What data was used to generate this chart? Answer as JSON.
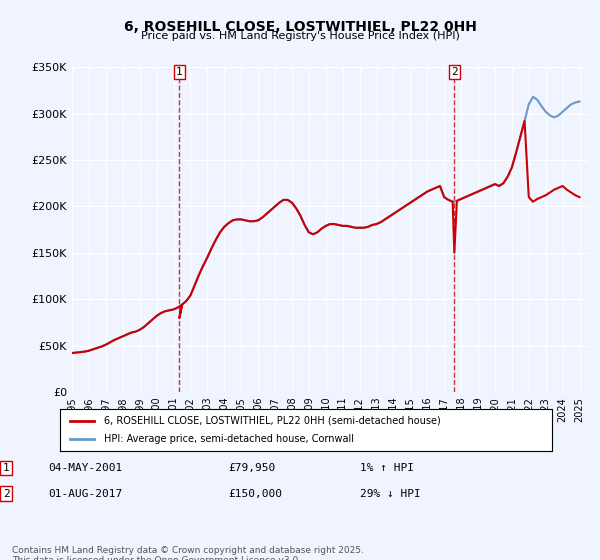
{
  "title": "6, ROSEHILL CLOSE, LOSTWITHIEL, PL22 0HH",
  "subtitle": "Price paid vs. HM Land Registry's House Price Index (HPI)",
  "xlabel": "",
  "ylabel": "",
  "ylim": [
    0,
    350000
  ],
  "yticks": [
    0,
    50000,
    100000,
    150000,
    200000,
    250000,
    300000,
    350000
  ],
  "ytick_labels": [
    "£0",
    "£50K",
    "£100K",
    "£150K",
    "£200K",
    "£250K",
    "£300K",
    "£350K"
  ],
  "background_color": "#f0f4ff",
  "plot_bg_color": "#f0f4ff",
  "grid_color": "#ffffff",
  "red_color": "#cc0000",
  "blue_color": "#6699cc",
  "marker1_date": "2001-05-04",
  "marker1_label": "1",
  "marker1_price": 79950,
  "marker1_text": "04-MAY-2001    £79,950    1% ↑ HPI",
  "marker2_date": "2017-08-01",
  "marker2_label": "2",
  "marker2_price": 150000,
  "marker2_text": "01-AUG-2017    £150,000    29% ↓ HPI",
  "legend_line1": "6, ROSEHILL CLOSE, LOSTWITHIEL, PL22 0HH (semi-detached house)",
  "legend_line2": "HPI: Average price, semi-detached house, Cornwall",
  "footer": "Contains HM Land Registry data © Crown copyright and database right 2025.\nThis data is licensed under the Open Government Licence v3.0.",
  "hpi_data": {
    "dates": [
      1995.0,
      1995.25,
      1995.5,
      1995.75,
      1996.0,
      1996.25,
      1996.5,
      1996.75,
      1997.0,
      1997.25,
      1997.5,
      1997.75,
      1998.0,
      1998.25,
      1998.5,
      1998.75,
      1999.0,
      1999.25,
      1999.5,
      1999.75,
      2000.0,
      2000.25,
      2000.5,
      2000.75,
      2001.0,
      2001.25,
      2001.5,
      2001.75,
      2002.0,
      2002.25,
      2002.5,
      2002.75,
      2003.0,
      2003.25,
      2003.5,
      2003.75,
      2004.0,
      2004.25,
      2004.5,
      2004.75,
      2005.0,
      2005.25,
      2005.5,
      2005.75,
      2006.0,
      2006.25,
      2006.5,
      2006.75,
      2007.0,
      2007.25,
      2007.5,
      2007.75,
      2008.0,
      2008.25,
      2008.5,
      2008.75,
      2009.0,
      2009.25,
      2009.5,
      2009.75,
      2010.0,
      2010.25,
      2010.5,
      2010.75,
      2011.0,
      2011.25,
      2011.5,
      2011.75,
      2012.0,
      2012.25,
      2012.5,
      2012.75,
      2013.0,
      2013.25,
      2013.5,
      2013.75,
      2014.0,
      2014.25,
      2014.5,
      2014.75,
      2015.0,
      2015.25,
      2015.5,
      2015.75,
      2016.0,
      2016.25,
      2016.5,
      2016.75,
      2017.0,
      2017.25,
      2017.5,
      2017.75,
      2018.0,
      2018.25,
      2018.5,
      2018.75,
      2019.0,
      2019.25,
      2019.5,
      2019.75,
      2020.0,
      2020.25,
      2020.5,
      2020.75,
      2021.0,
      2021.25,
      2021.5,
      2021.75,
      2022.0,
      2022.25,
      2022.5,
      2022.75,
      2023.0,
      2023.25,
      2023.5,
      2023.75,
      2024.0,
      2024.25,
      2024.5,
      2024.75,
      2025.0
    ],
    "values": [
      42000,
      42500,
      43000,
      43500,
      44500,
      46000,
      47500,
      49000,
      51000,
      53500,
      56000,
      58000,
      60000,
      62000,
      64000,
      65000,
      67000,
      70000,
      74000,
      78000,
      82000,
      85000,
      87000,
      88000,
      89000,
      91000,
      94000,
      98000,
      104000,
      115000,
      126000,
      136000,
      145000,
      155000,
      164000,
      172000,
      178000,
      182000,
      185000,
      186000,
      186000,
      185000,
      184000,
      184000,
      185000,
      188000,
      192000,
      196000,
      200000,
      204000,
      207000,
      207000,
      204000,
      198000,
      190000,
      180000,
      172000,
      170000,
      172000,
      176000,
      179000,
      181000,
      181000,
      180000,
      179000,
      179000,
      178000,
      177000,
      177000,
      177000,
      178000,
      180000,
      181000,
      183000,
      186000,
      189000,
      192000,
      195000,
      198000,
      201000,
      204000,
      207000,
      210000,
      213000,
      216000,
      218000,
      220000,
      222000,
      210000,
      207000,
      205000,
      206000,
      208000,
      210000,
      212000,
      214000,
      216000,
      218000,
      220000,
      222000,
      224000,
      222000,
      225000,
      232000,
      242000,
      258000,
      275000,
      292000,
      310000,
      318000,
      315000,
      308000,
      302000,
      298000,
      296000,
      298000,
      302000,
      306000,
      310000,
      312000,
      313000
    ]
  },
  "red_data": {
    "dates": [
      1995.0,
      1995.25,
      1995.5,
      1995.75,
      1996.0,
      1996.25,
      1996.5,
      1996.75,
      1997.0,
      1997.25,
      1997.5,
      1997.75,
      1998.0,
      1998.25,
      1998.5,
      1998.75,
      1999.0,
      1999.25,
      1999.5,
      1999.75,
      2000.0,
      2000.25,
      2000.5,
      2000.75,
      2001.0,
      2001.25,
      2001.5,
      2001.35,
      2001.35,
      2001.5,
      2001.75,
      2002.0,
      2002.25,
      2002.5,
      2002.75,
      2003.0,
      2003.25,
      2003.5,
      2003.75,
      2004.0,
      2004.25,
      2004.5,
      2004.75,
      2005.0,
      2005.25,
      2005.5,
      2005.75,
      2006.0,
      2006.25,
      2006.5,
      2006.75,
      2007.0,
      2007.25,
      2007.5,
      2007.75,
      2008.0,
      2008.25,
      2008.5,
      2008.75,
      2009.0,
      2009.25,
      2009.5,
      2009.75,
      2010.0,
      2010.25,
      2010.5,
      2010.75,
      2011.0,
      2011.25,
      2011.5,
      2011.75,
      2012.0,
      2012.25,
      2012.5,
      2012.75,
      2013.0,
      2013.25,
      2013.5,
      2013.75,
      2014.0,
      2014.25,
      2014.5,
      2014.75,
      2015.0,
      2015.25,
      2015.5,
      2015.75,
      2016.0,
      2016.25,
      2016.5,
      2016.75,
      2017.0,
      2017.25,
      2017.5,
      2017.6,
      2017.6,
      2017.75,
      2018.0,
      2018.25,
      2018.5,
      2018.75,
      2019.0,
      2019.25,
      2019.5,
      2019.75,
      2020.0,
      2020.25,
      2020.5,
      2020.75,
      2021.0,
      2021.25,
      2021.5,
      2021.75,
      2022.0,
      2022.25,
      2022.5,
      2022.75,
      2023.0,
      2023.25,
      2023.5,
      2023.75,
      2024.0,
      2024.25,
      2024.5,
      2024.75,
      2025.0
    ],
    "values": [
      42000,
      42500,
      43000,
      43500,
      44500,
      46000,
      47500,
      49000,
      51000,
      53500,
      56000,
      58000,
      60000,
      62000,
      64000,
      65000,
      67000,
      70000,
      74000,
      78000,
      82000,
      85000,
      87000,
      88000,
      89000,
      91000,
      94000,
      79950,
      79950,
      94000,
      98000,
      104000,
      115000,
      126000,
      136000,
      145000,
      155000,
      164000,
      172000,
      178000,
      182000,
      185000,
      186000,
      186000,
      185000,
      184000,
      184000,
      185000,
      188000,
      192000,
      196000,
      200000,
      204000,
      207000,
      207000,
      204000,
      198000,
      190000,
      180000,
      172000,
      170000,
      172000,
      176000,
      179000,
      181000,
      181000,
      180000,
      179000,
      179000,
      178000,
      177000,
      177000,
      177000,
      178000,
      180000,
      181000,
      183000,
      186000,
      189000,
      192000,
      195000,
      198000,
      201000,
      204000,
      207000,
      210000,
      213000,
      216000,
      218000,
      220000,
      222000,
      210000,
      207000,
      205000,
      150000,
      150000,
      206000,
      208000,
      210000,
      212000,
      214000,
      216000,
      218000,
      220000,
      222000,
      224000,
      222000,
      225000,
      232000,
      242000,
      258000,
      275000,
      292000,
      210000,
      205000,
      208000,
      210000,
      212000,
      215000,
      218000,
      220000,
      222000,
      218000,
      215000,
      212000,
      210000
    ]
  }
}
